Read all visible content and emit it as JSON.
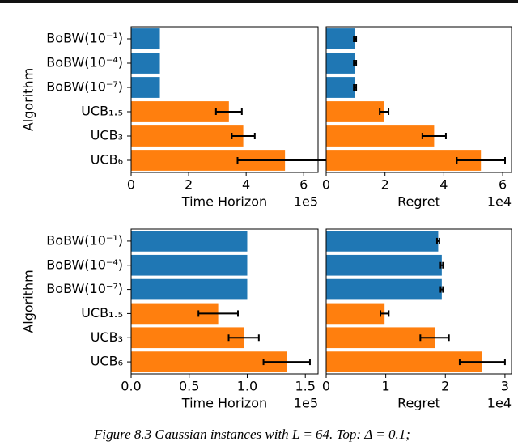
{
  "chart_data": [
    {
      "type": "bar",
      "orientation": "horizontal",
      "ylabel": "Algorithm",
      "xlabel": "Time Horizon",
      "offset_label": "1e5",
      "categories": [
        "BoBW(10⁻¹)",
        "BoBW(10⁻⁴)",
        "BoBW(10⁻⁷)",
        "UCB₁.₅",
        "UCB₃",
        "UCB₆"
      ],
      "values": [
        1.0,
        1.0,
        1.0,
        3.4,
        3.9,
        5.35
      ],
      "errors": [
        null,
        null,
        null,
        0.45,
        0.4,
        1.65
      ],
      "colors": [
        "#1f77b4",
        "#1f77b4",
        "#1f77b4",
        "#ff7f0e",
        "#ff7f0e",
        "#ff7f0e"
      ],
      "xlim": [
        0,
        6.5
      ],
      "xticks": [
        0,
        2,
        4,
        6
      ]
    },
    {
      "type": "bar",
      "orientation": "horizontal",
      "xlabel": "Regret",
      "offset_label": "1e4",
      "values": [
        0.98,
        0.98,
        0.98,
        1.97,
        3.67,
        5.26
      ],
      "errors": [
        0.04,
        0.04,
        0.04,
        0.15,
        0.4,
        0.82
      ],
      "colors": [
        "#1f77b4",
        "#1f77b4",
        "#1f77b4",
        "#ff7f0e",
        "#ff7f0e",
        "#ff7f0e"
      ],
      "xlim": [
        0,
        6.3
      ],
      "xticks": [
        0,
        2,
        4,
        6
      ]
    },
    {
      "type": "bar",
      "orientation": "horizontal",
      "ylabel": "Algorithm",
      "xlabel": "Time Horizon",
      "offset_label": "1e5",
      "categories": [
        "BoBW(10⁻¹)",
        "BoBW(10⁻⁴)",
        "BoBW(10⁻⁷)",
        "UCB₁.₅",
        "UCB₃",
        "UCB₆"
      ],
      "values": [
        1.0,
        1.0,
        1.0,
        0.75,
        0.97,
        1.34
      ],
      "errors": [
        null,
        null,
        null,
        0.17,
        0.13,
        0.2
      ],
      "colors": [
        "#1f77b4",
        "#1f77b4",
        "#1f77b4",
        "#ff7f0e",
        "#ff7f0e",
        "#ff7f0e"
      ],
      "xlim": [
        0,
        1.61
      ],
      "xticks": [
        {
          "value": 0,
          "label": "0.0"
        },
        0.5,
        {
          "value": 1,
          "label": "1.0"
        },
        1.5
      ]
    },
    {
      "type": "bar",
      "orientation": "horizontal",
      "xlabel": "Regret",
      "offset_label": "1e4",
      "values": [
        1.88,
        1.94,
        1.94,
        0.98,
        1.82,
        2.62
      ],
      "errors": [
        0.02,
        0.02,
        0.02,
        0.07,
        0.24,
        0.38
      ],
      "colors": [
        "#1f77b4",
        "#1f77b4",
        "#1f77b4",
        "#ff7f0e",
        "#ff7f0e",
        "#ff7f0e"
      ],
      "xlim": [
        0,
        3.11
      ],
      "xticks": [
        0,
        1,
        2,
        3
      ]
    }
  ],
  "caption": "Figure 8.3 Gaussian instances with L = 64. Top: Δ = 0.1;"
}
